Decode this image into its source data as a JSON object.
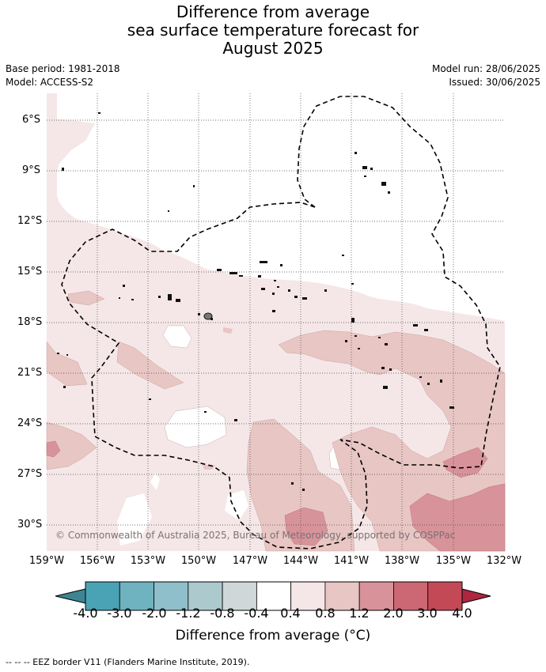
{
  "title_lines": [
    "Difference from average",
    "sea surface temperature forecast for",
    "August 2025"
  ],
  "meta": {
    "base_period": "Base period: 1981-2018",
    "model": "Model: ACCESS-S2",
    "model_run": "Model run: 28/06/2025",
    "issued": "Issued: 30/06/2025"
  },
  "map": {
    "region": "South-central Pacific Ocean",
    "lat_labels": [
      "6°S",
      "9°S",
      "12°S",
      "15°S",
      "18°S",
      "21°S",
      "24°S",
      "27°S",
      "30°S"
    ],
    "lon_labels": [
      "159°W",
      "156°W",
      "153°W",
      "150°W",
      "147°W",
      "144°W",
      "141°W",
      "138°W",
      "135°W",
      "132°W"
    ],
    "lat_range": [
      -31.6,
      -4.6
    ],
    "lon_range": [
      -159,
      -132
    ],
    "grid": true,
    "copyright": "© Commonwealth of Australia 2025, Bureau of Meteorology, supported by COSPPac"
  },
  "colorbar": {
    "ticks": [
      "-4.0",
      "-3.0",
      "-2.0",
      "-1.2",
      "-0.8",
      "-0.4",
      "0.4",
      "0.8",
      "1.2",
      "2.0",
      "3.0",
      "4.0"
    ],
    "colors": [
      "#3e8493",
      "#4aa3b4",
      "#6fb2c0",
      "#8fbfca",
      "#acc9ce",
      "#d0d7d8",
      "#ffffff",
      "#f5e7e7",
      "#e8c6c4",
      "#d8939a",
      "#cc6774",
      "#c34957"
    ],
    "extend_low_color": "#3e8493",
    "extend_high_color": "#ae2640",
    "label": "Difference from average (°C)"
  },
  "legend_note": "--  --  -- EEZ border V11 (Flanders Marine Institute, 2019)."
}
